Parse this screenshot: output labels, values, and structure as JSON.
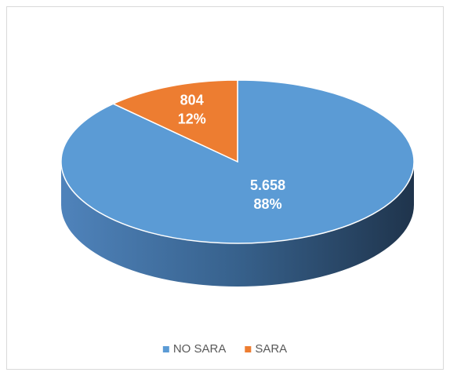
{
  "chart_data": {
    "type": "pie",
    "categories": [
      "NO SARA",
      "SARA"
    ],
    "values": [
      5658,
      804
    ],
    "value_labels": [
      "5.658",
      "804"
    ],
    "percent_values": [
      88,
      12
    ],
    "percent_labels": [
      "88%",
      "12%"
    ],
    "colors": [
      "#5b9bd5",
      "#ed7d31"
    ],
    "legend": "bottom"
  }
}
